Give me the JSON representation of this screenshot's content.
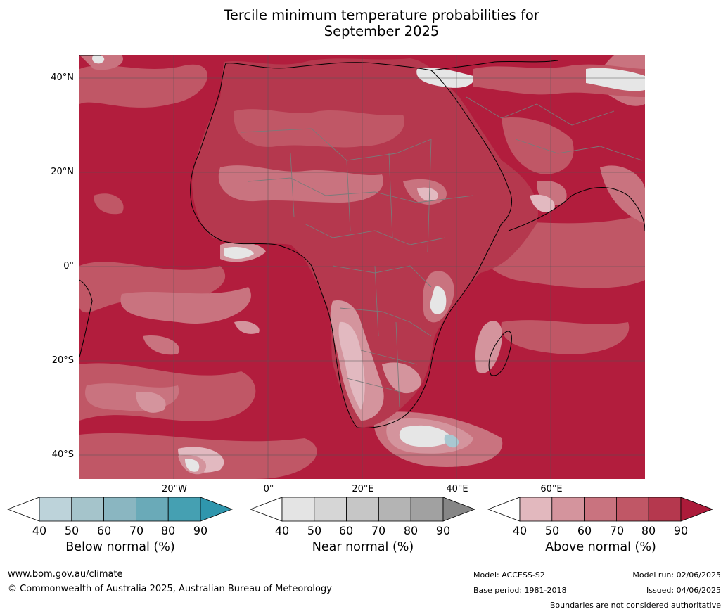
{
  "title_line1": "Tercile minimum temperature probabilities for",
  "title_line2": "September 2025",
  "lat_labels": [
    "40°N",
    "20°N",
    "0°",
    "20°S",
    "40°S"
  ],
  "lon_labels": [
    "20°W",
    "0°",
    "20°E",
    "40°E",
    "60°E"
  ],
  "colorbars": [
    {
      "title": "Below normal (%)",
      "ticks": [
        "40",
        "50",
        "60",
        "70",
        "80",
        "90"
      ],
      "colors": [
        "#ffffff",
        "#bdd3da",
        "#a5c4cb",
        "#8ab6c1",
        "#6aaab8",
        "#45a0b2",
        "#2f96ad"
      ]
    },
    {
      "title": "Near normal (%)",
      "ticks": [
        "40",
        "50",
        "60",
        "70",
        "80",
        "90"
      ],
      "colors": [
        "#ffffff",
        "#e4e4e4",
        "#d6d6d6",
        "#c6c6c6",
        "#b4b4b4",
        "#a1a1a1",
        "#868686"
      ]
    },
    {
      "title": "Above normal (%)",
      "ticks": [
        "40",
        "50",
        "60",
        "70",
        "80",
        "90"
      ],
      "colors": [
        "#ffffff",
        "#e2b8be",
        "#d4949d",
        "#c9737f",
        "#c05766",
        "#b5384e",
        "#ac1b3a"
      ]
    }
  ],
  "footer": {
    "website": "www.bom.gov.au/climate",
    "copyright": "© Commonwealth of Australia 2025, Australian Bureau of Meteorology",
    "model": "Model: ACCESS-S2",
    "base_period": "Base period: 1981-2018",
    "model_run": "Model run: 02/06/2025",
    "issued": "Issued: 04/06/2025",
    "disclaimer": "Boundaries are not considered authoritative"
  },
  "map_colors": {
    "dominant": "#b21d3d",
    "level80": "#bd4255",
    "level70": "#c86a78",
    "level60": "#d4929c",
    "level50": "#e2b9c0",
    "near": "#e6e6e6",
    "below": "#a9c8d1",
    "coastline": "#000000",
    "borders": "#7a7a7a",
    "grid": "#555555"
  }
}
